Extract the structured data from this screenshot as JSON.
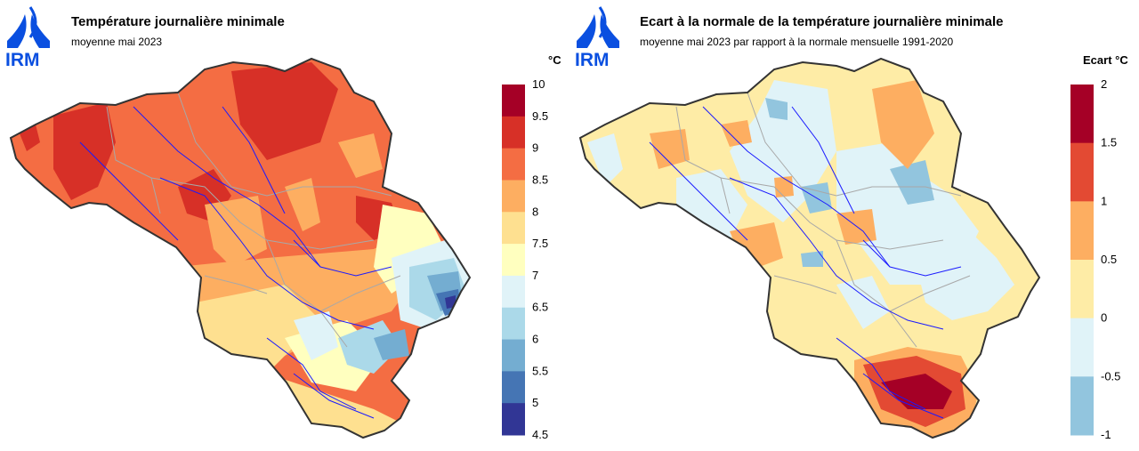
{
  "left_map": {
    "logo_text": "IRM",
    "title": "Température journalière minimale",
    "subtitle": "moyenne mai 2023",
    "unit": "°C",
    "legend": {
      "ticks": [
        "10",
        "9.5",
        "9",
        "8.5",
        "8",
        "7.5",
        "7",
        "6.5",
        "6",
        "5.5",
        "5",
        "4.5"
      ],
      "colors": [
        "#a50026",
        "#d73027",
        "#f46d43",
        "#fdae61",
        "#fee090",
        "#ffffbf",
        "#e0f3f8",
        "#abd9e9",
        "#74add1",
        "#4575b4",
        "#313695"
      ]
    }
  },
  "right_map": {
    "logo_text": "IRM",
    "title": "Ecart à la normale de la température journalière minimale",
    "subtitle": "moyenne mai 2023 par rapport à la normale mensuelle 1991-2020",
    "unit": "Ecart °C",
    "legend": {
      "ticks": [
        "2",
        "1.5",
        "1",
        "0.5",
        "0",
        "-0.5",
        "-1"
      ],
      "colors": [
        "#a50026",
        "#e34a33",
        "#fdae61",
        "#feeca6",
        "#e0f3f8",
        "#92c5de"
      ]
    }
  },
  "chart_data": [
    {
      "type": "heatmap",
      "title": "Température journalière minimale",
      "subtitle": "moyenne mai 2023",
      "unit": "°C",
      "scale_breaks": [
        10,
        9.5,
        9,
        8.5,
        8,
        7.5,
        7,
        6.5,
        6,
        5.5,
        5,
        4.5
      ],
      "regions": [
        {
          "area": "north/central Belgium",
          "range": [
            8.5,
            9.5
          ]
        },
        {
          "area": "south-east (Ardennes)",
          "range": [
            4.5,
            7
          ]
        },
        {
          "area": "south (Gaume)",
          "range": [
            7,
            8
          ]
        }
      ]
    },
    {
      "type": "heatmap",
      "title": "Ecart à la normale de la température journalière minimale",
      "subtitle": "moyenne mai 2023 par rapport à la normale mensuelle 1991-2020",
      "unit": "Ecart °C",
      "scale_breaks": [
        2,
        1.5,
        1,
        0.5,
        0,
        -0.5,
        -1
      ],
      "regions": [
        {
          "area": "most of country",
          "range": [
            -0.5,
            0.5
          ]
        },
        {
          "area": "extreme south (Gaume)",
          "range": [
            1,
            2
          ]
        }
      ]
    }
  ]
}
